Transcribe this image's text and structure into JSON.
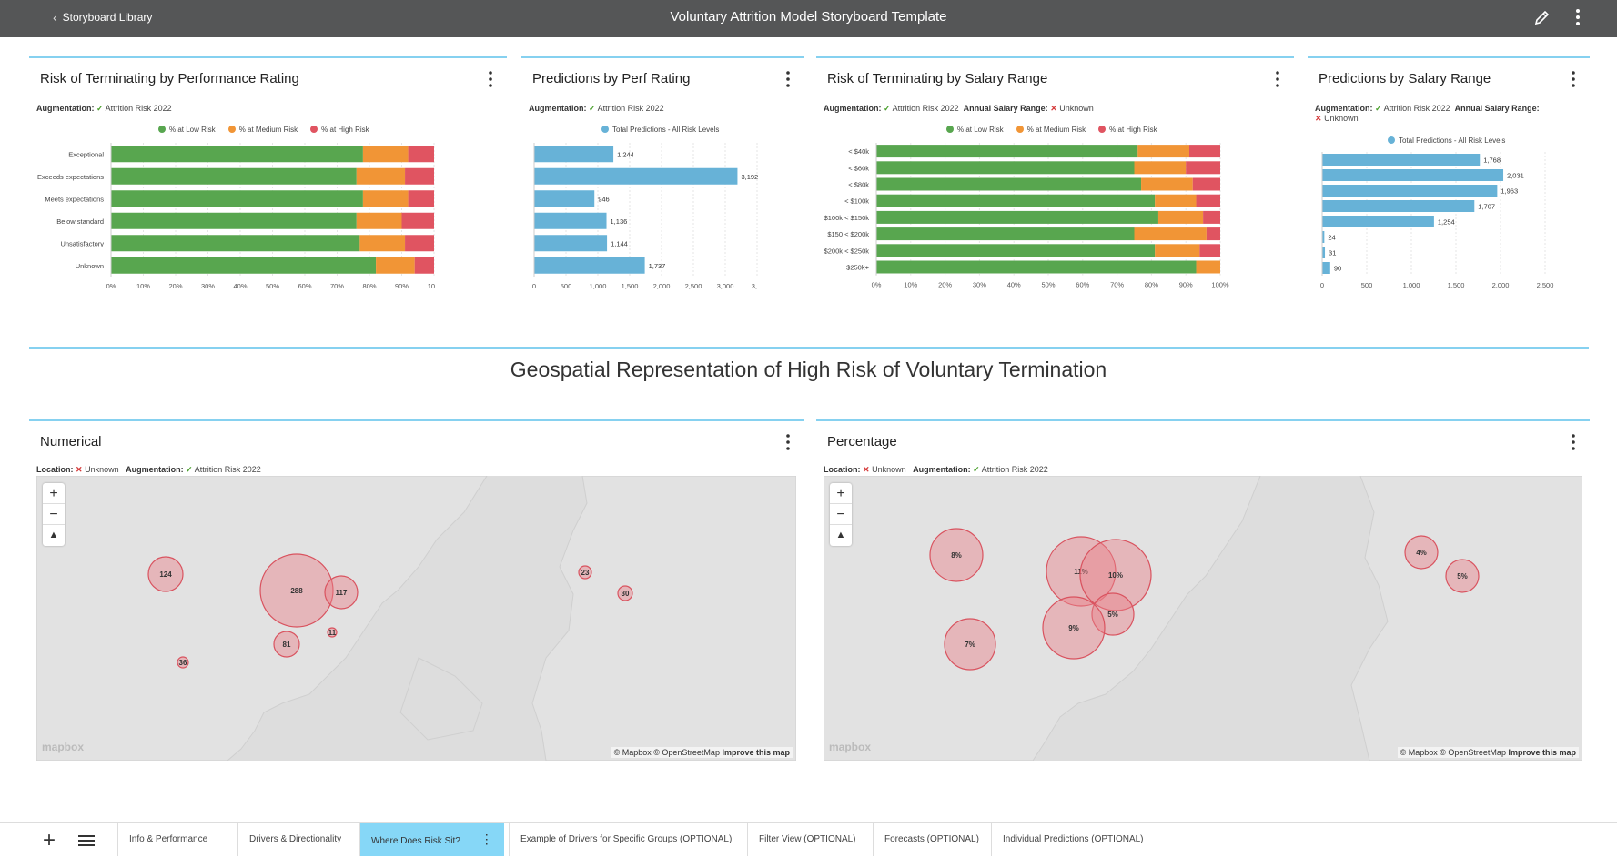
{
  "header": {
    "back_label": "Storyboard Library",
    "title": "Voluntary Attrition Model Storyboard Template",
    "edit_icon": "pencil-icon",
    "menu_icon": "kebab-icon"
  },
  "colors": {
    "low": "#58a64f",
    "medium": "#f19536",
    "high": "#e05461",
    "predictions": "#67b2d7",
    "accent": "#86d1f0",
    "bubble": "#e8808a"
  },
  "panels": {
    "perf_risk": {
      "title": "Risk of Terminating by Performance Rating",
      "aug_label": "Augmentation:",
      "aug_value": "Attrition Risk 2022"
    },
    "perf_pred": {
      "title": "Predictions by Perf Rating",
      "aug_label": "Augmentation:",
      "aug_value": "Attrition Risk 2022"
    },
    "salary_risk": {
      "title": "Risk of Terminating by Salary Range",
      "aug_label": "Augmentation:",
      "aug_value": "Attrition Risk 2022",
      "extra_label": "Annual Salary Range:",
      "extra_value": "Unknown"
    },
    "salary_pred": {
      "title": "Predictions by Salary Range",
      "aug_label": "Augmentation:",
      "aug_value": "Attrition Risk 2022",
      "extra_label": "Annual Salary Range:",
      "extra_value": "Unknown"
    }
  },
  "legend": {
    "low": "% at Low Risk",
    "medium": "% at Medium Risk",
    "high": "% at High Risk",
    "total": "Total Predictions - All Risk Levels"
  },
  "chart_data": [
    {
      "type": "bar",
      "stacked": true,
      "orientation": "horizontal",
      "title": "Risk of Terminating by Performance Rating",
      "categories": [
        "Exceptional",
        "Exceeds expectations",
        "Meets expectations",
        "Below standard",
        "Unsatisfactory",
        "Unknown"
      ],
      "series": [
        {
          "name": "% at Low Risk",
          "values": [
            78,
            76,
            78,
            76,
            77,
            82
          ]
        },
        {
          "name": "% at Medium Risk",
          "values": [
            14,
            15,
            14,
            14,
            14,
            12
          ]
        },
        {
          "name": "% at High Risk",
          "values": [
            8,
            9,
            8,
            10,
            9,
            6
          ]
        }
      ],
      "x_ticks": [
        "0%",
        "10%",
        "20%",
        "30%",
        "40%",
        "50%",
        "60%",
        "70%",
        "80%",
        "90%",
        "10..."
      ],
      "xlim": [
        0,
        100
      ]
    },
    {
      "type": "bar",
      "orientation": "horizontal",
      "title": "Predictions by Perf Rating",
      "categories": [
        "Exceptional",
        "Exceeds expectations",
        "Meets expectations",
        "Below standard",
        "Unsatisfactory",
        "Unknown"
      ],
      "series": [
        {
          "name": "Total Predictions - All Risk Levels",
          "values": [
            1244,
            3192,
            946,
            1136,
            1144,
            1737
          ]
        }
      ],
      "data_labels": [
        "1,244",
        "3,192",
        "946",
        "1,136",
        "1,144",
        "1,737"
      ],
      "x_ticks": [
        "0",
        "500",
        "1,000",
        "1,500",
        "2,000",
        "2,500",
        "3,000",
        "3,..."
      ],
      "xlim": [
        0,
        3500
      ]
    },
    {
      "type": "bar",
      "stacked": true,
      "orientation": "horizontal",
      "title": "Risk of Terminating by Salary Range",
      "categories": [
        "< $40k",
        "< $60k",
        "< $80k",
        "< $100k",
        "$100k < $150k",
        "$150 < $200k",
        "$200k < $250k",
        "$250k+"
      ],
      "series": [
        {
          "name": "% at Low Risk",
          "values": [
            76,
            75,
            77,
            81,
            82,
            75,
            81,
            93
          ]
        },
        {
          "name": "% at Medium Risk",
          "values": [
            15,
            15,
            15,
            12,
            13,
            21,
            13,
            7
          ]
        },
        {
          "name": "% at High Risk",
          "values": [
            9,
            10,
            8,
            7,
            5,
            4,
            6,
            0
          ]
        }
      ],
      "x_ticks": [
        "0%",
        "10%",
        "20%",
        "30%",
        "40%",
        "50%",
        "60%",
        "70%",
        "80%",
        "90%",
        "100%"
      ],
      "xlim": [
        0,
        100
      ]
    },
    {
      "type": "bar",
      "orientation": "horizontal",
      "title": "Predictions by Salary Range",
      "categories": [
        "< $40k",
        "< $60k",
        "< $80k",
        "< $100k",
        "$100k < $150k",
        "$150 < $200k",
        "$200k < $250k",
        "$250k+"
      ],
      "series": [
        {
          "name": "Total Predictions - All Risk Levels",
          "values": [
            1768,
            2031,
            1963,
            1707,
            1254,
            24,
            31,
            90
          ]
        }
      ],
      "data_labels": [
        "1,768",
        "2,031",
        "1,963",
        "1,707",
        "1,254",
        "24",
        "31",
        "90"
      ],
      "x_ticks": [
        "0",
        "500",
        "1,000",
        "1,500",
        "2,000",
        "2,500"
      ],
      "xlim": [
        0,
        2500
      ]
    }
  ],
  "geo": {
    "section_title": "Geospatial Representation of High Risk of Voluntary Termination",
    "location_label": "Location:",
    "location_value": "Unknown",
    "aug_label": "Augmentation:",
    "aug_value": "Attrition Risk 2022",
    "attribution": "© Mapbox © OpenStreetMap",
    "improve": "Improve this map",
    "logo": "mapbox",
    "numerical": {
      "title": "Numerical",
      "bubbles": [
        "124",
        "288",
        "117",
        "11",
        "81",
        "36",
        "23",
        "30"
      ]
    },
    "percentage": {
      "title": "Percentage",
      "bubbles": [
        "8%",
        "11%",
        "10%",
        "5%",
        "9%",
        "7%",
        "4%",
        "5%"
      ]
    }
  },
  "tabs": {
    "items": [
      "Info & Performance",
      "Drivers & Directionality",
      "Where Does Risk Sit?",
      "Example of Drivers for Specific Groups (OPTIONAL)",
      "Filter View (OPTIONAL)",
      "Forecasts (OPTIONAL)",
      "Individual Predictions (OPTIONAL)"
    ],
    "active_index": 2
  }
}
